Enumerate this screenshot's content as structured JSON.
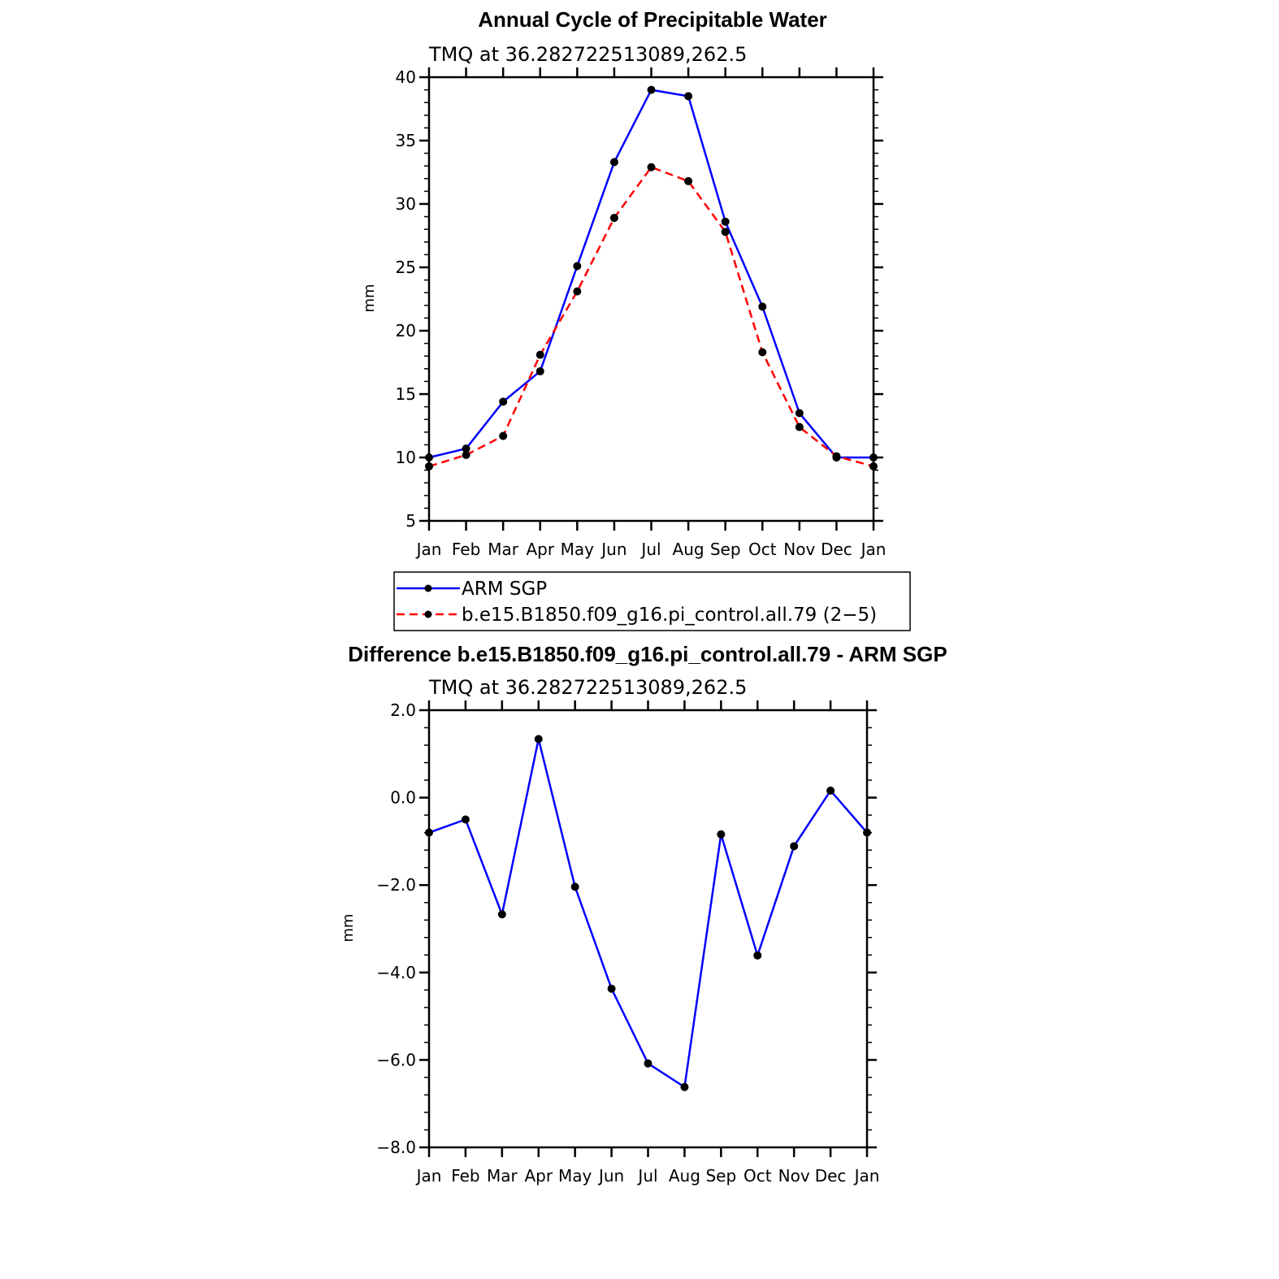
{
  "chart_data": [
    {
      "type": "line",
      "title": "Annual Cycle of Precipitable Water",
      "subtitle": "TMQ at 36.282722513089,262.5",
      "xlabel": "",
      "ylabel": "mm",
      "categories": [
        "Jan",
        "Feb",
        "Mar",
        "Apr",
        "May",
        "Jun",
        "Jul",
        "Aug",
        "Sep",
        "Oct",
        "Nov",
        "Dec",
        "Jan"
      ],
      "ylim": [
        5,
        40
      ],
      "yticks": [
        "5",
        "10",
        "15",
        "20",
        "25",
        "30",
        "35",
        "40"
      ],
      "ytick_values": [
        5,
        10,
        15,
        20,
        25,
        30,
        35,
        40
      ],
      "series": [
        {
          "name": "ARM SGP",
          "color": "#0000ff",
          "style": "solid",
          "values": [
            10.0,
            10.7,
            14.4,
            16.8,
            25.1,
            33.3,
            39.0,
            38.5,
            28.6,
            21.9,
            13.5,
            10.0,
            10.0
          ]
        },
        {
          "name": "b.e15.B1850.f09_g16.pi_control.all.79 (2−5)",
          "color": "#ff0000",
          "style": "dashed",
          "values": [
            9.3,
            10.2,
            11.7,
            18.1,
            23.1,
            28.9,
            32.9,
            31.8,
            27.8,
            18.3,
            12.4,
            10.1,
            9.3
          ]
        }
      ],
      "legend": "below"
    },
    {
      "type": "line",
      "title": "Difference b.e15.B1850.f09_g16.pi_control.all.79 - ARM SGP",
      "subtitle": "TMQ at 36.282722513089,262.5",
      "xlabel": "",
      "ylabel": "mm",
      "categories": [
        "Jan",
        "Feb",
        "Mar",
        "Apr",
        "May",
        "Jun",
        "Jul",
        "Aug",
        "Sep",
        "Oct",
        "Nov",
        "Dec",
        "Jan"
      ],
      "ylim": [
        -8,
        2
      ],
      "yticks": [
        "−8.0",
        "−6.0",
        "−4.0",
        "−2.0",
        "0.0",
        "2.0"
      ],
      "ytick_values": [
        -8,
        -6,
        -4,
        -2,
        0,
        2
      ],
      "series": [
        {
          "color": "#0000ff",
          "style": "solid",
          "values": [
            -0.8,
            -0.5,
            -2.67,
            1.34,
            -2.04,
            -4.37,
            -6.08,
            -6.62,
            -0.84,
            -3.61,
            -1.11,
            0.16,
            -0.8
          ]
        }
      ]
    }
  ]
}
